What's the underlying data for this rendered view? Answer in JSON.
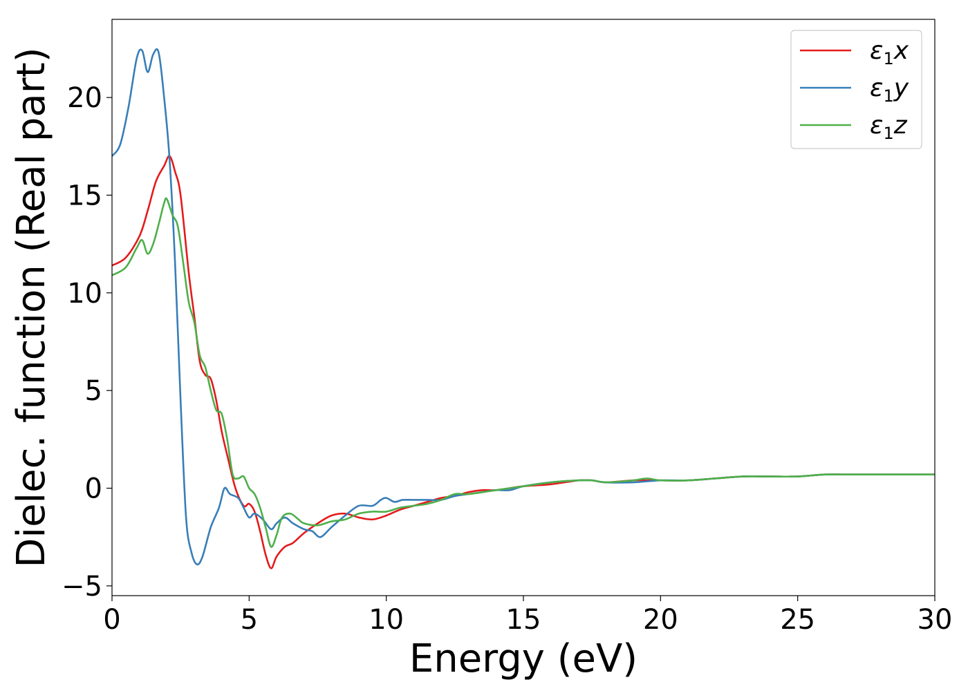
{
  "chart_data": {
    "type": "line",
    "xlabel": "Energy (eV)",
    "ylabel": "Dielec. function (Real part)",
    "xlim": [
      0,
      30
    ],
    "ylim": [
      -5.5,
      24
    ],
    "xticks": [
      0,
      5,
      10,
      15,
      20,
      25,
      30
    ],
    "xtick_labels": [
      "0",
      "5",
      "10",
      "15",
      "20",
      "25",
      "30"
    ],
    "yticks": [
      -5,
      0,
      5,
      10,
      15,
      20
    ],
    "ytick_labels": [
      "−5",
      "0",
      "5",
      "10",
      "15",
      "20"
    ],
    "grid": false,
    "legend_position": "top-right",
    "series": [
      {
        "name": "ε₁x",
        "legend_base": "ε",
        "legend_sub": "1",
        "legend_suffix": "x",
        "color": "#e41a1c",
        "x": [
          0,
          0.5,
          1.0,
          1.3,
          1.6,
          1.9,
          2.1,
          2.3,
          2.5,
          2.8,
          3.0,
          3.2,
          3.4,
          3.6,
          3.8,
          4.0,
          4.2,
          4.5,
          4.8,
          5.0,
          5.2,
          5.4,
          5.6,
          5.8,
          6.0,
          6.3,
          6.6,
          7.0,
          7.5,
          8.0,
          8.5,
          9.0,
          9.5,
          10.0,
          10.5,
          11.0,
          11.5,
          12.0,
          12.5,
          13.0,
          13.5,
          14.0,
          14.5,
          15.0,
          16.0,
          17.0,
          17.5,
          18.0,
          19.0,
          19.5,
          20.0,
          21.0,
          22.0,
          23.0,
          24.0,
          25.0,
          26.0,
          27.0,
          28.0,
          29.0,
          30.0
        ],
        "y": [
          11.4,
          11.8,
          12.9,
          14.2,
          15.7,
          16.5,
          17.0,
          16.2,
          15.0,
          11.0,
          8.8,
          6.5,
          5.8,
          5.6,
          4.5,
          2.9,
          1.7,
          0.0,
          -0.9,
          -0.8,
          -1.2,
          -2.2,
          -3.4,
          -4.1,
          -3.5,
          -3.0,
          -2.8,
          -2.3,
          -1.8,
          -1.4,
          -1.3,
          -1.5,
          -1.6,
          -1.4,
          -1.1,
          -0.9,
          -0.7,
          -0.5,
          -0.4,
          -0.2,
          -0.1,
          -0.1,
          0.0,
          0.1,
          0.2,
          0.4,
          0.4,
          0.3,
          0.4,
          0.4,
          0.4,
          0.4,
          0.5,
          0.6,
          0.6,
          0.6,
          0.7,
          0.7,
          0.7,
          0.7,
          0.7
        ]
      },
      {
        "name": "ε₁y",
        "legend_base": "ε",
        "legend_sub": "1",
        "legend_suffix": "y",
        "color": "#377eb8",
        "x": [
          0,
          0.3,
          0.6,
          0.9,
          1.1,
          1.3,
          1.5,
          1.7,
          1.9,
          2.1,
          2.3,
          2.5,
          2.7,
          2.9,
          3.1,
          3.3,
          3.6,
          3.9,
          4.1,
          4.3,
          4.6,
          4.8,
          5.0,
          5.2,
          5.5,
          5.8,
          6.0,
          6.3,
          6.6,
          7.0,
          7.3,
          7.6,
          8.0,
          8.5,
          9.0,
          9.5,
          9.8,
          10.0,
          10.3,
          10.6,
          11.0,
          11.5,
          12.0,
          12.5,
          13.0,
          13.5,
          14.0,
          14.5,
          15.0,
          16.0,
          17.0,
          17.5,
          18.0,
          19.0,
          20.0,
          21.0,
          22.0,
          23.0,
          24.0,
          25.0,
          26.0,
          27.0,
          28.0,
          29.0,
          30.0
        ],
        "y": [
          17.0,
          17.6,
          19.5,
          22.0,
          22.4,
          21.3,
          22.2,
          22.3,
          20.0,
          16.8,
          11.5,
          4.5,
          -1.5,
          -3.3,
          -3.9,
          -3.5,
          -2.0,
          -1.0,
          0.0,
          -0.3,
          -0.5,
          -1.0,
          -1.5,
          -1.3,
          -1.6,
          -2.1,
          -1.8,
          -1.5,
          -1.8,
          -2.1,
          -2.2,
          -2.5,
          -2.0,
          -1.4,
          -0.9,
          -0.9,
          -0.6,
          -0.5,
          -0.7,
          -0.6,
          -0.6,
          -0.6,
          -0.6,
          -0.4,
          -0.3,
          -0.2,
          -0.1,
          -0.1,
          0.1,
          0.3,
          0.4,
          0.4,
          0.3,
          0.3,
          0.4,
          0.4,
          0.5,
          0.6,
          0.6,
          0.6,
          0.7,
          0.7,
          0.7,
          0.7,
          0.7
        ]
      },
      {
        "name": "ε₁z",
        "legend_base": "ε",
        "legend_sub": "1",
        "legend_suffix": "z",
        "color": "#4daf4a",
        "x": [
          0,
          0.5,
          0.9,
          1.1,
          1.3,
          1.5,
          1.7,
          1.9,
          2.0,
          2.2,
          2.4,
          2.6,
          2.8,
          3.0,
          3.2,
          3.4,
          3.6,
          3.8,
          4.0,
          4.2,
          4.4,
          4.6,
          4.8,
          5.0,
          5.2,
          5.4,
          5.6,
          5.8,
          6.0,
          6.2,
          6.5,
          6.8,
          7.0,
          7.5,
          8.0,
          8.5,
          9.0,
          9.5,
          10.0,
          10.5,
          11.0,
          11.5,
          12.0,
          12.5,
          13.0,
          14.0,
          15.0,
          16.0,
          17.0,
          17.5,
          18.0,
          19.0,
          19.5,
          20.0,
          21.0,
          22.0,
          23.0,
          24.0,
          25.0,
          26.0,
          27.0,
          28.0,
          29.0,
          30.0
        ],
        "y": [
          10.9,
          11.3,
          12.3,
          12.7,
          12.0,
          12.5,
          13.5,
          14.6,
          14.8,
          14.0,
          13.4,
          11.5,
          9.5,
          8.5,
          6.8,
          6.2,
          5.0,
          4.0,
          3.8,
          2.5,
          0.7,
          0.5,
          0.6,
          0.0,
          -0.3,
          -1.0,
          -2.0,
          -3.0,
          -2.4,
          -1.5,
          -1.3,
          -1.6,
          -1.8,
          -1.9,
          -1.7,
          -1.6,
          -1.3,
          -1.2,
          -1.2,
          -1.0,
          -0.9,
          -0.8,
          -0.6,
          -0.3,
          -0.3,
          -0.1,
          0.1,
          0.3,
          0.4,
          0.4,
          0.3,
          0.4,
          0.5,
          0.4,
          0.4,
          0.5,
          0.6,
          0.6,
          0.6,
          0.7,
          0.7,
          0.7,
          0.7,
          0.7
        ]
      }
    ]
  }
}
